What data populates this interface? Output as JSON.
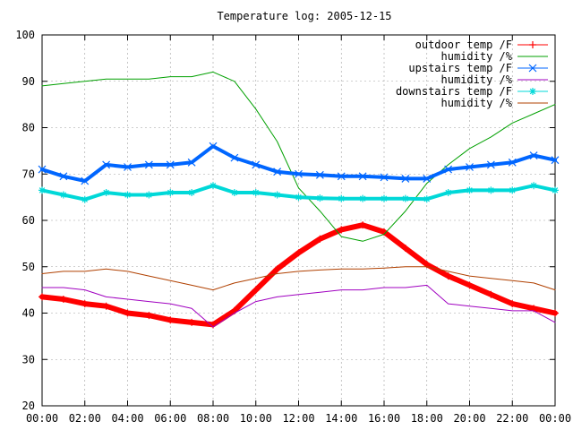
{
  "chart_data": {
    "type": "line",
    "title": "Temperature log: 2005-12-15",
    "xlabel": "",
    "ylabel": "",
    "x_ticks": [
      "00:00",
      "02:00",
      "04:00",
      "06:00",
      "08:00",
      "10:00",
      "12:00",
      "14:00",
      "16:00",
      "18:00",
      "20:00",
      "22:00",
      "00:00"
    ],
    "xlim": [
      0,
      24
    ],
    "y_ticks": [
      20,
      30,
      40,
      50,
      60,
      70,
      80,
      90,
      100
    ],
    "ylim": [
      20,
      100
    ],
    "grid": true,
    "legend_position": "top-right",
    "series": [
      {
        "name": "outdoor temp /F",
        "color": "#ff0000",
        "marker": "plus",
        "x": [
          0,
          1,
          2,
          3,
          4,
          5,
          6,
          7,
          8,
          9,
          10,
          11,
          12,
          13,
          14,
          15,
          16,
          17,
          18,
          19,
          20,
          21,
          22,
          23,
          24
        ],
        "y": [
          43.5,
          43,
          42,
          41.5,
          40,
          39.5,
          38.5,
          38,
          37.5,
          40.5,
          45,
          49.5,
          53,
          56,
          58,
          59,
          57.5,
          54,
          50.5,
          48,
          46,
          44,
          42,
          41,
          40
        ]
      },
      {
        "name": "humidity /%",
        "color": "#00a000",
        "marker": "none",
        "x": [
          0,
          1,
          2,
          3,
          4,
          5,
          6,
          7,
          8,
          9,
          10,
          11,
          12,
          13,
          14,
          15,
          16,
          17,
          18,
          19,
          20,
          21,
          22,
          23,
          24
        ],
        "y": [
          89,
          89.5,
          90,
          90.5,
          90.5,
          90.5,
          91,
          91,
          92,
          90,
          84,
          77,
          67,
          62,
          56.5,
          55.5,
          57,
          62,
          68,
          72,
          75.5,
          78,
          81,
          83,
          85
        ]
      },
      {
        "name": "upstairs temp /F",
        "color": "#0066ff",
        "marker": "x",
        "x": [
          0,
          1,
          2,
          3,
          4,
          5,
          6,
          7,
          8,
          9,
          10,
          11,
          12,
          13,
          14,
          15,
          16,
          17,
          18,
          19,
          20,
          21,
          22,
          23,
          24
        ],
        "y": [
          71,
          69.5,
          68.5,
          72,
          71.5,
          72,
          72,
          72.5,
          76,
          73.5,
          72,
          70.5,
          70,
          69.8,
          69.5,
          69.5,
          69.3,
          69,
          69,
          71,
          71.5,
          72,
          72.5,
          74,
          73
        ]
      },
      {
        "name": "humidity /%",
        "color": "#a000c0",
        "marker": "none",
        "x": [
          0,
          1,
          2,
          3,
          4,
          5,
          6,
          7,
          8,
          9,
          10,
          11,
          12,
          13,
          14,
          15,
          16,
          17,
          18,
          19,
          20,
          21,
          22,
          23,
          24
        ],
        "y": [
          45.5,
          45.5,
          45,
          43.5,
          43,
          42.5,
          42,
          41,
          37,
          40,
          42.5,
          43.5,
          44,
          44.5,
          45,
          45,
          45.5,
          45.5,
          46,
          42,
          41.5,
          41,
          40.5,
          40.5,
          38
        ]
      },
      {
        "name": "downstairs temp /F",
        "color": "#00d8d8",
        "marker": "star",
        "x": [
          0,
          1,
          2,
          3,
          4,
          5,
          6,
          7,
          8,
          9,
          10,
          11,
          12,
          13,
          14,
          15,
          16,
          17,
          18,
          19,
          20,
          21,
          22,
          23,
          24
        ],
        "y": [
          66.5,
          65.5,
          64.5,
          66,
          65.5,
          65.5,
          66,
          66,
          67.5,
          66,
          66,
          65.5,
          65,
          64.8,
          64.7,
          64.7,
          64.7,
          64.7,
          64.6,
          66,
          66.5,
          66.5,
          66.5,
          67.5,
          66.5
        ]
      },
      {
        "name": "humidity /%",
        "color": "#b04000",
        "marker": "none",
        "x": [
          0,
          1,
          2,
          3,
          4,
          5,
          6,
          7,
          8,
          9,
          10,
          11,
          12,
          13,
          14,
          15,
          16,
          17,
          18,
          19,
          20,
          21,
          22,
          23,
          24
        ],
        "y": [
          48.5,
          49,
          49,
          49.5,
          49,
          48,
          47,
          46,
          45,
          46.5,
          47.5,
          48.5,
          49,
          49.3,
          49.5,
          49.5,
          49.7,
          50,
          50,
          49,
          48,
          47.5,
          47,
          46.5,
          45
        ]
      }
    ]
  }
}
